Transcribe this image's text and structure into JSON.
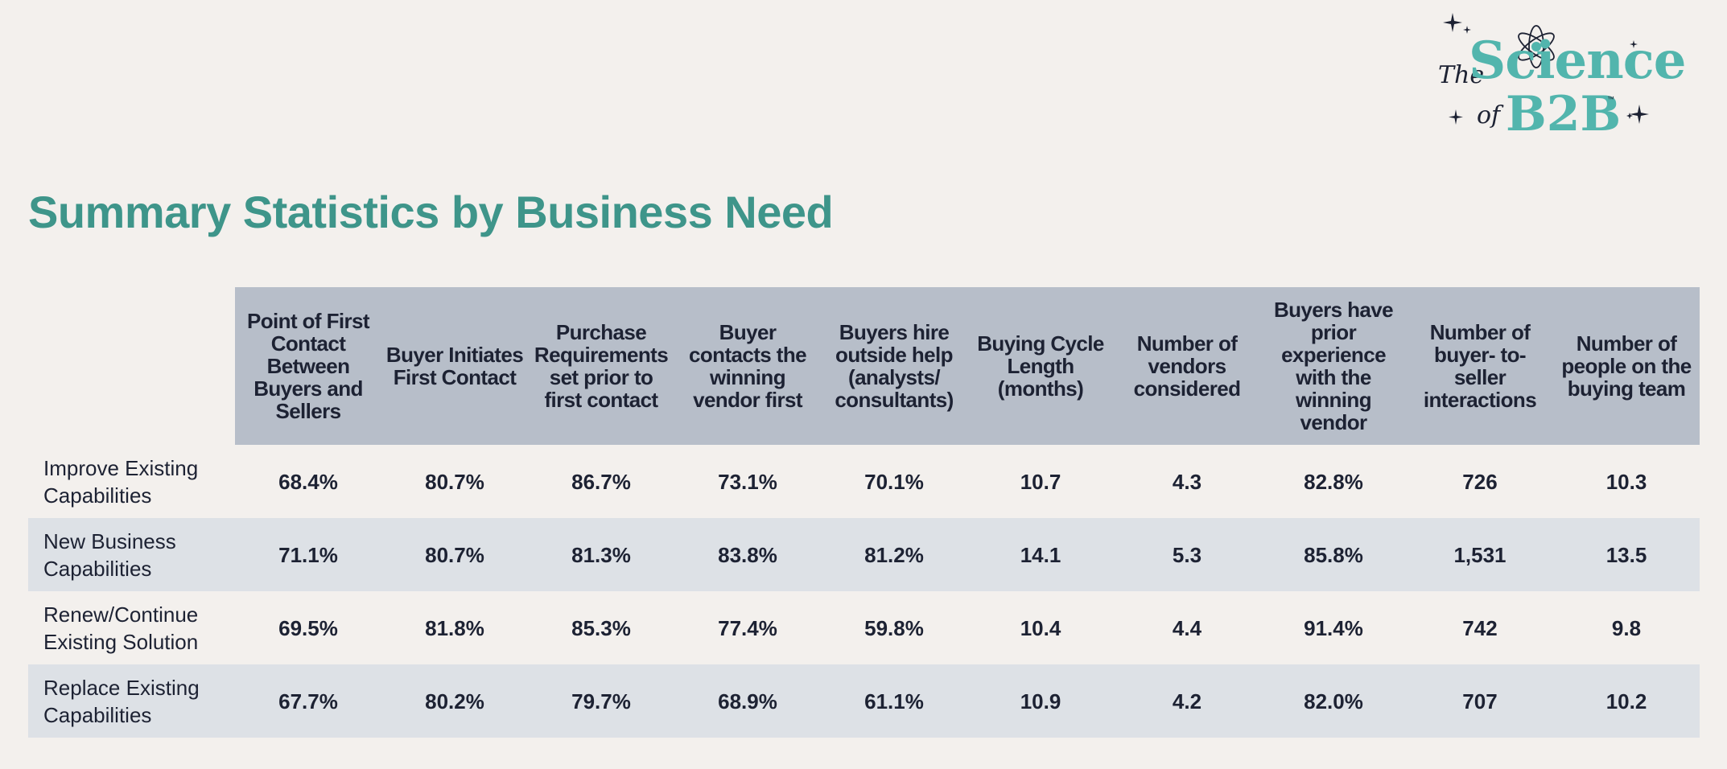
{
  "logo": {
    "word_the": "The",
    "word_science": "Science",
    "word_of": "of",
    "word_b2b": "B2B",
    "trademark": "™",
    "icon": "atom-icon",
    "accent_color": "#52b5ad"
  },
  "title": "Summary Statistics by Business Need",
  "colors": {
    "title": "#3e958a",
    "header_bg": "#b7bec9",
    "alt_row_bg": "#dde1e6",
    "page_bg": "#f3f0ed",
    "text": "#1d2233"
  },
  "table": {
    "columns": [
      "Point of First Contact Between Buyers and Sellers",
      "Buyer Initiates First Contact",
      "Purchase Requirements set prior to first contact",
      "Buyer contacts the winning vendor first",
      "Buyers hire outside help (analysts/ consultants)",
      "Buying Cycle Length (months)",
      "Number of vendors considered",
      "Buyers have prior experience with the winning vendor",
      "Number of buyer- to-seller interactions",
      "Number of people on the buying team"
    ],
    "rows": [
      {
        "label": "Improve Existing Capabilities",
        "values": [
          "68.4%",
          "80.7%",
          "86.7%",
          "73.1%",
          "70.1%",
          "10.7",
          "4.3",
          "82.8%",
          "726",
          "10.3"
        ]
      },
      {
        "label": "New Business Capabilities",
        "values": [
          "71.1%",
          "80.7%",
          "81.3%",
          "83.8%",
          "81.2%",
          "14.1",
          "5.3",
          "85.8%",
          "1,531",
          "13.5"
        ]
      },
      {
        "label": "Renew/Continue Existing Solution",
        "values": [
          "69.5%",
          "81.8%",
          "85.3%",
          "77.4%",
          "59.8%",
          "10.4",
          "4.4",
          "91.4%",
          "742",
          "9.8"
        ]
      },
      {
        "label": "Replace Existing Capabilities",
        "values": [
          "67.7%",
          "80.2%",
          "79.7%",
          "68.9%",
          "61.1%",
          "10.9",
          "4.2",
          "82.0%",
          "707",
          "10.2"
        ]
      }
    ]
  }
}
